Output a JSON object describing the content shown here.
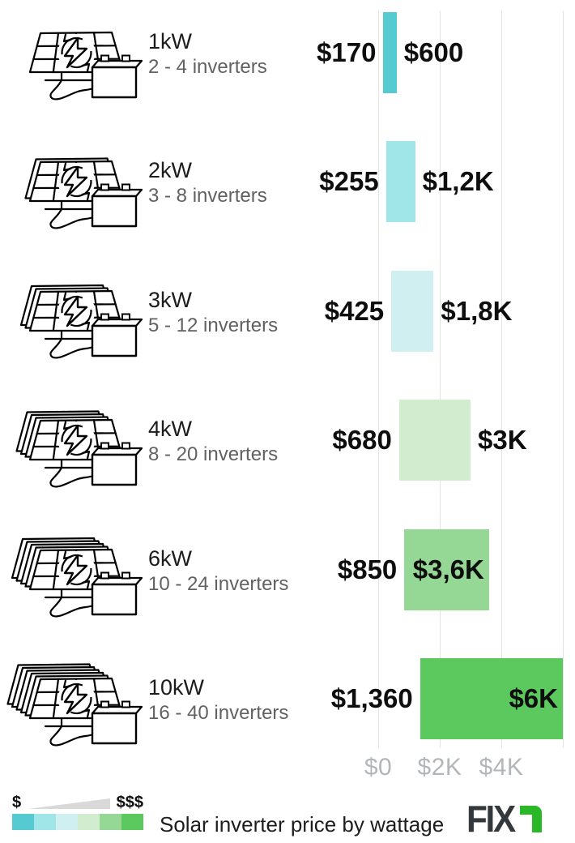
{
  "chart_data": {
    "type": "bar",
    "subtype": "horizontal-range-bars",
    "title": "Solar inverter price by wattage",
    "xlabel": "",
    "ylabel": "",
    "x_axis": {
      "tick_labels": [
        "$0",
        "$2K",
        "$4K"
      ],
      "tick_values": [
        0,
        2000,
        4000
      ],
      "gridline_values": [
        0,
        2000,
        4000,
        6000
      ],
      "range": [
        0,
        6000
      ],
      "grid": "on",
      "unit": "USD"
    },
    "rows": [
      {
        "wattage": "1kW",
        "inverters": "2 - 4 inverters",
        "min": 170,
        "max": 600,
        "min_label": "$170",
        "max_label": "$600",
        "max_label_placement": "outside",
        "color": "#55cbd1",
        "panel_stack": 1
      },
      {
        "wattage": "2kW",
        "inverters": "3 - 8 inverters",
        "min": 255,
        "max": 1200,
        "min_label": "$255",
        "max_label": "$1,2K",
        "max_label_placement": "outside",
        "color": "#a0e5e7",
        "panel_stack": 2
      },
      {
        "wattage": "3kW",
        "inverters": "5 - 12 inverters",
        "min": 425,
        "max": 1800,
        "min_label": "$425",
        "max_label": "$1,8K",
        "max_label_placement": "outside",
        "color": "#d0eff1",
        "panel_stack": 3
      },
      {
        "wattage": "4kW",
        "inverters": "8 - 20 inverters",
        "min": 680,
        "max": 3000,
        "min_label": "$680",
        "max_label": "$3K",
        "max_label_placement": "outside",
        "color": "#d2ecd0",
        "panel_stack": 4
      },
      {
        "wattage": "6kW",
        "inverters": "10 - 24 inverters",
        "min": 850,
        "max": 3600,
        "min_label": "$850",
        "max_label": "$3,6K",
        "max_label_placement": "inside",
        "color": "#95d895",
        "panel_stack": 5
      },
      {
        "wattage": "10kW",
        "inverters": "16 - 40 inverters",
        "min": 1360,
        "max": 6000,
        "min_label": "$1,360",
        "max_label": "$6K",
        "max_label_placement": "inside",
        "color": "#5cc95f",
        "panel_stack": 6
      }
    ],
    "legend": {
      "low": "$",
      "high": "$$$",
      "swatch_colors": [
        "#55cbd1",
        "#a0e5e7",
        "#d0eff1",
        "#d2ecd0",
        "#95d895",
        "#5cc95f"
      ]
    }
  },
  "footer": {
    "title": "Solar inverter price by wattage",
    "logo_text": "FIX",
    "logo_text_color": "#33383c",
    "logo_accent_color": "#2ab829"
  },
  "colors": {
    "gridline": "#e3e3e3",
    "axis_label": "#b3b6b9",
    "price_text": "#0e0e0e",
    "wattage_text": "#1c1c1c",
    "inverters_text": "#616161",
    "wedge": "#d9d9d9"
  }
}
